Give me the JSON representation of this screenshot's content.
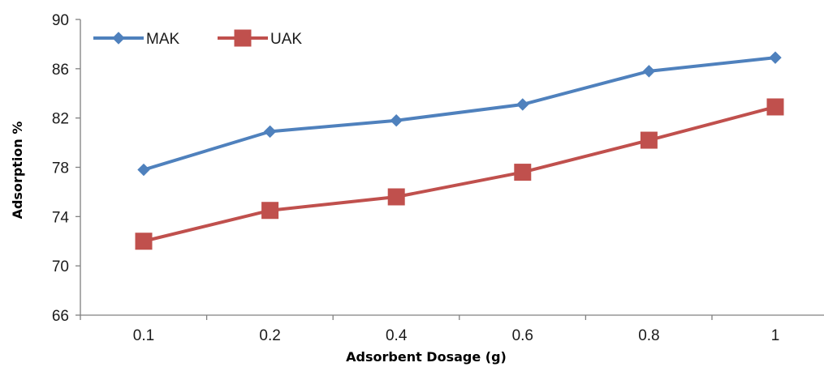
{
  "chart_data": {
    "type": "line",
    "title": "",
    "xlabel": "Adsorbent Dosage (g)",
    "ylabel": "Adsorption %",
    "categories": [
      "0.1",
      "0.2",
      "0.4",
      "0.6",
      "0.8",
      "1"
    ],
    "ylim": [
      66,
      90
    ],
    "yticks": [
      "66",
      "70",
      "74",
      "78",
      "82",
      "86",
      "90"
    ],
    "grid": false,
    "legend_position": "top-left",
    "series": [
      {
        "name": "MAK",
        "values": [
          77.8,
          80.9,
          81.8,
          83.1,
          85.8,
          86.9
        ],
        "color": "#4f81bd",
        "marker": "diamond"
      },
      {
        "name": "UAK",
        "values": [
          72.0,
          74.5,
          75.6,
          77.6,
          80.2,
          82.9
        ],
        "color": "#c0504d",
        "marker": "square"
      }
    ]
  }
}
